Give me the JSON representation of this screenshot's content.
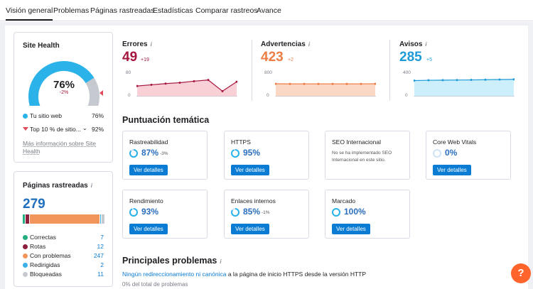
{
  "tabs": [
    "Visión general",
    "Problemas",
    "Páginas rastreadas",
    "Estadísticas",
    "Comparar rastreos",
    "Avance"
  ],
  "site_health": {
    "title": "Site Health",
    "value": "76%",
    "delta": "-2%",
    "legend": [
      {
        "label": "Tu sitio web",
        "value": "76%",
        "color": "#2bb3e9"
      },
      {
        "label": "Top 10 % de sitio...",
        "value": "92%",
        "color": "#e04a5a"
      }
    ],
    "more_link": "Más información sobre Site Health",
    "colors": {
      "main": "#2bb3e9",
      "rest": "#c6c9d0"
    }
  },
  "crawled": {
    "title": "Páginas rastreadas",
    "total": "279",
    "rows": [
      {
        "label": "Correctas",
        "value": "7",
        "color": "#24ad80"
      },
      {
        "label": "Rotas",
        "value": "12",
        "color": "#8b1f3d"
      },
      {
        "label": "Con problemas",
        "value": "247",
        "color": "#f2955a"
      },
      {
        "label": "Redirigidas",
        "value": "2",
        "color": "#3ab0e6"
      },
      {
        "label": "Bloqueadas",
        "value": "11",
        "color": "#c6c9d0"
      }
    ]
  },
  "metrics": [
    {
      "title": "Errores",
      "value": "49",
      "delta": "+19",
      "color": "#a5163e",
      "fill": "#f9d0d6",
      "line": "#a5163e",
      "ymax": "80",
      "ymin": "0"
    },
    {
      "title": "Advertencias",
      "value": "423",
      "delta": "+2",
      "color": "#ec7d44",
      "fill": "#fbd8c6",
      "line": "#ec7d44",
      "ymax": "800",
      "ymin": "0"
    },
    {
      "title": "Avisos",
      "value": "285",
      "delta": "+5",
      "color": "#1e9bd7",
      "fill": "#cdeefb",
      "line": "#1e9bd7",
      "ymax": "400",
      "ymin": "0"
    }
  ],
  "metric_series": [
    [
      35,
      39,
      43,
      46,
      51,
      55,
      18,
      49
    ],
    [
      423,
      421,
      422,
      421,
      422,
      421,
      422,
      423
    ],
    [
      265,
      270,
      272,
      274,
      276,
      279,
      282,
      285
    ]
  ],
  "thematic": {
    "title": "Puntuación temática",
    "button": "Ver detalles",
    "cards": [
      {
        "title": "Rastreabilidad",
        "value": "87%",
        "delta": "-3%",
        "pct": 87
      },
      {
        "title": "HTTPS",
        "value": "95%",
        "delta": "",
        "pct": 95
      },
      {
        "title": "SEO Internacional",
        "note": "No se ha implementado SEO Internacional en este sitio."
      },
      {
        "title": "Core Web Vitals",
        "value": "0%",
        "delta": "",
        "pct": 0
      },
      {
        "title": "Rendimiento",
        "value": "93%",
        "delta": "",
        "pct": 93
      },
      {
        "title": "Enlaces internos",
        "value": "85%",
        "delta": "-1%",
        "pct": 85
      },
      {
        "title": "Marcado",
        "value": "100%",
        "delta": "",
        "pct": 100
      }
    ]
  },
  "problems": {
    "title": "Principales problemas",
    "link": "Ningún redireccionamiento ni canónica",
    "text": " a la página de inicio HTTPS desde la versión HTTP",
    "sub": "0% del total de problemas"
  },
  "help_label": "?"
}
